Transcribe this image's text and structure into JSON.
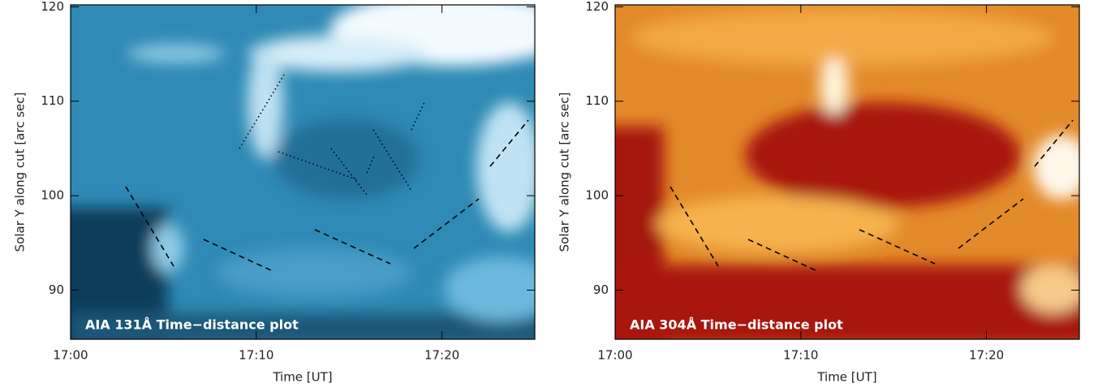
{
  "chart_data": [
    {
      "type": "image",
      "annotation": "AIA 131Å Time−distance plot",
      "xlabel": "Time [UT]",
      "ylabel": "Solar Y along cut [arc sec]",
      "xlim": [
        "17:00",
        "17:25"
      ],
      "xticks": [
        "17:00",
        "17:10",
        "17:20"
      ],
      "ylim": [
        84.8,
        120.2
      ],
      "yticks": [
        90,
        100,
        110,
        120
      ]
    },
    {
      "type": "image",
      "annotation": "AIA 304Å Time−distance plot",
      "xlabel": "Time [UT]",
      "ylabel": "Solar Y along cut [arc sec]",
      "xlim": [
        "17:00",
        "17:25"
      ],
      "xticks": [
        "17:00",
        "17:10",
        "17:20"
      ],
      "ylim": [
        84.8,
        120.2
      ],
      "yticks": [
        90,
        100,
        110,
        120
      ]
    }
  ]
}
